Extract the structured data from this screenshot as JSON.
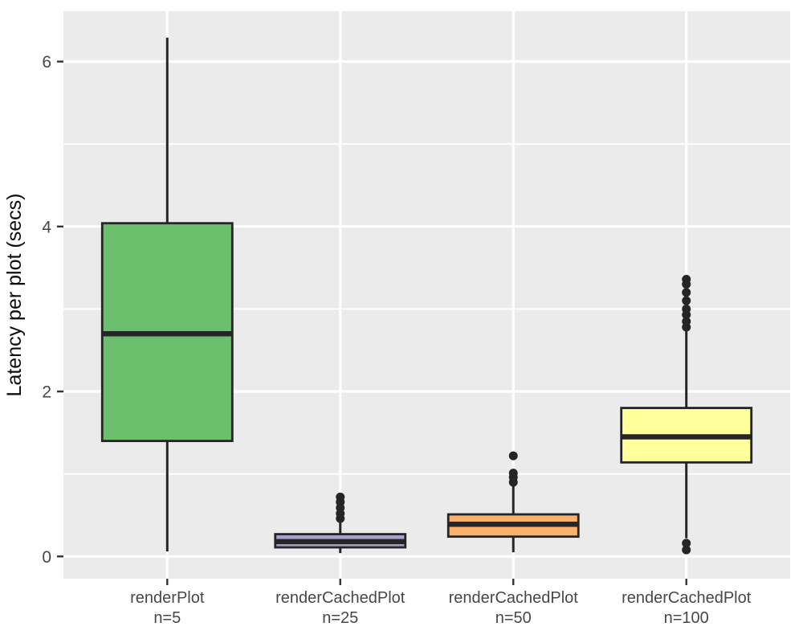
{
  "chart_data": {
    "type": "boxplot",
    "title": "",
    "xlabel": "",
    "ylabel": "Latency per plot (secs)",
    "ylim": [
      -0.27,
      6.61
    ],
    "yticks_major": [
      0,
      2,
      4,
      6
    ],
    "yticks_minor": [
      1,
      3,
      5
    ],
    "legend": "none",
    "grid": "white major and minor horizontal lines, white vertical line at each category, on gray panel",
    "categories": [
      [
        "renderPlot",
        "n=5"
      ],
      [
        "renderCachedPlot",
        "n=25"
      ],
      [
        "renderCachedPlot",
        "n=50"
      ],
      [
        "renderCachedPlot",
        "n=100"
      ]
    ],
    "series": [
      {
        "name": "renderPlot n=5",
        "color": "#6CBF6D",
        "lower_whisker": 0.06,
        "q1": 1.4,
        "median": 2.7,
        "q3": 4.04,
        "upper_whisker": 6.29,
        "outliers": []
      },
      {
        "name": "renderCachedPlot n=25",
        "color": "#ACA1CC",
        "lower_whisker": 0.04,
        "q1": 0.11,
        "median": 0.18,
        "q3": 0.27,
        "upper_whisker": 0.43,
        "outliers": [
          0.46,
          0.52,
          0.59,
          0.66,
          0.72
        ]
      },
      {
        "name": "renderCachedPlot n=50",
        "color": "#FBB16B",
        "lower_whisker": 0.05,
        "q1": 0.24,
        "median": 0.39,
        "q3": 0.51,
        "upper_whisker": 0.87,
        "outliers": [
          0.9,
          0.96,
          1.01,
          1.22
        ]
      },
      {
        "name": "renderCachedPlot n=100",
        "color": "#FEFE9B",
        "lower_whisker": 0.22,
        "q1": 1.14,
        "median": 1.45,
        "q3": 1.8,
        "upper_whisker": 2.73,
        "outliers": [
          0.08,
          0.16,
          2.78,
          2.85,
          2.93,
          3.0,
          3.1,
          3.2,
          3.3,
          3.36
        ]
      }
    ],
    "style": {
      "panel_bg": "#EBEBEB",
      "grid_major_color": "#FFFFFF",
      "grid_minor_color": "#FFFFFF",
      "box_stroke": "#252525",
      "outlier_fill": "#252525",
      "tick_mark_color": "#333333",
      "tick_label_color": "#474747",
      "axis_title_color": "#0D0D0D"
    }
  }
}
